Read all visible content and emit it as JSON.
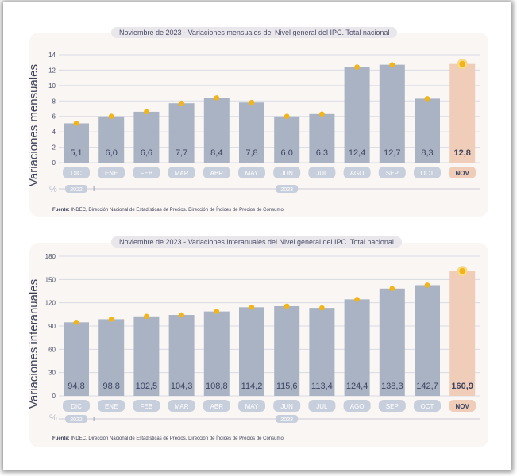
{
  "chart_data": [
    {
      "type": "bar",
      "title_date": "Noviembre de 2023",
      "title": "Variaciones mensuales del Nivel general del IPC. Total nacional",
      "ylabel": "Variaciones mensuales",
      "unit": "%",
      "ylim": [
        0,
        14
      ],
      "yticks": [
        0,
        2,
        4,
        6,
        8,
        10,
        12,
        14
      ],
      "categories": [
        "DIC",
        "ENE",
        "FEB",
        "MAR",
        "ABR",
        "MAY",
        "JUN",
        "JUL",
        "AGO",
        "SEP",
        "OCT",
        "NOV"
      ],
      "values": [
        5.1,
        6.0,
        6.6,
        7.7,
        8.4,
        7.8,
        6.0,
        6.3,
        12.4,
        12.7,
        8.3,
        12.8
      ],
      "value_labels": [
        "5,1",
        "6,0",
        "6,6",
        "7,7",
        "8,4",
        "7,8",
        "6,0",
        "6,3",
        "12,4",
        "12,7",
        "8,3",
        "12,8"
      ],
      "year_labels": [
        {
          "label": "2022",
          "from": 0,
          "to": 0
        },
        {
          "label": "2023",
          "from": 1,
          "to": 11
        }
      ],
      "source_label": "Fuente:",
      "source_text": "INDEC, Dirección Nacional de Estadísticas de Precios. Dirección de Índices de Precios de Consumo.",
      "colors": {
        "bar": "#a9b3c4",
        "highlight": "#efcdb8",
        "dot": "#f2b416",
        "grid": "#d8dbe3"
      }
    },
    {
      "type": "bar",
      "title_date": "Noviembre de 2023",
      "title": "Variaciones interanuales del Nivel general del IPC. Total nacional",
      "ylabel": "Variaciones interanuales",
      "unit": "%",
      "ylim": [
        0,
        180
      ],
      "yticks": [
        0,
        30,
        60,
        90,
        120,
        150,
        180
      ],
      "categories": [
        "DIC",
        "ENE",
        "FEB",
        "MAR",
        "ABR",
        "MAY",
        "JUN",
        "JUL",
        "AGO",
        "SEP",
        "OCT",
        "NOV"
      ],
      "values": [
        94.8,
        98.8,
        102.5,
        104.3,
        108.8,
        114.2,
        115.6,
        113.4,
        124.4,
        138.3,
        142.7,
        160.9
      ],
      "value_labels": [
        "94,8",
        "98,8",
        "102,5",
        "104,3",
        "108,8",
        "114,2",
        "115,6",
        "113,4",
        "124,4",
        "138,3",
        "142,7",
        "160,9"
      ],
      "year_labels": [
        {
          "label": "2022",
          "from": 0,
          "to": 0
        },
        {
          "label": "2023",
          "from": 1,
          "to": 11
        }
      ],
      "source_label": "Fuente:",
      "source_text": "INDEC, Dirección Nacional de Estadísticas de Precios. Dirección de Índices de Precios de Consumo.",
      "colors": {
        "bar": "#a9b3c4",
        "highlight": "#efcdb8",
        "dot": "#f2b416",
        "grid": "#d8dbe3"
      }
    }
  ]
}
